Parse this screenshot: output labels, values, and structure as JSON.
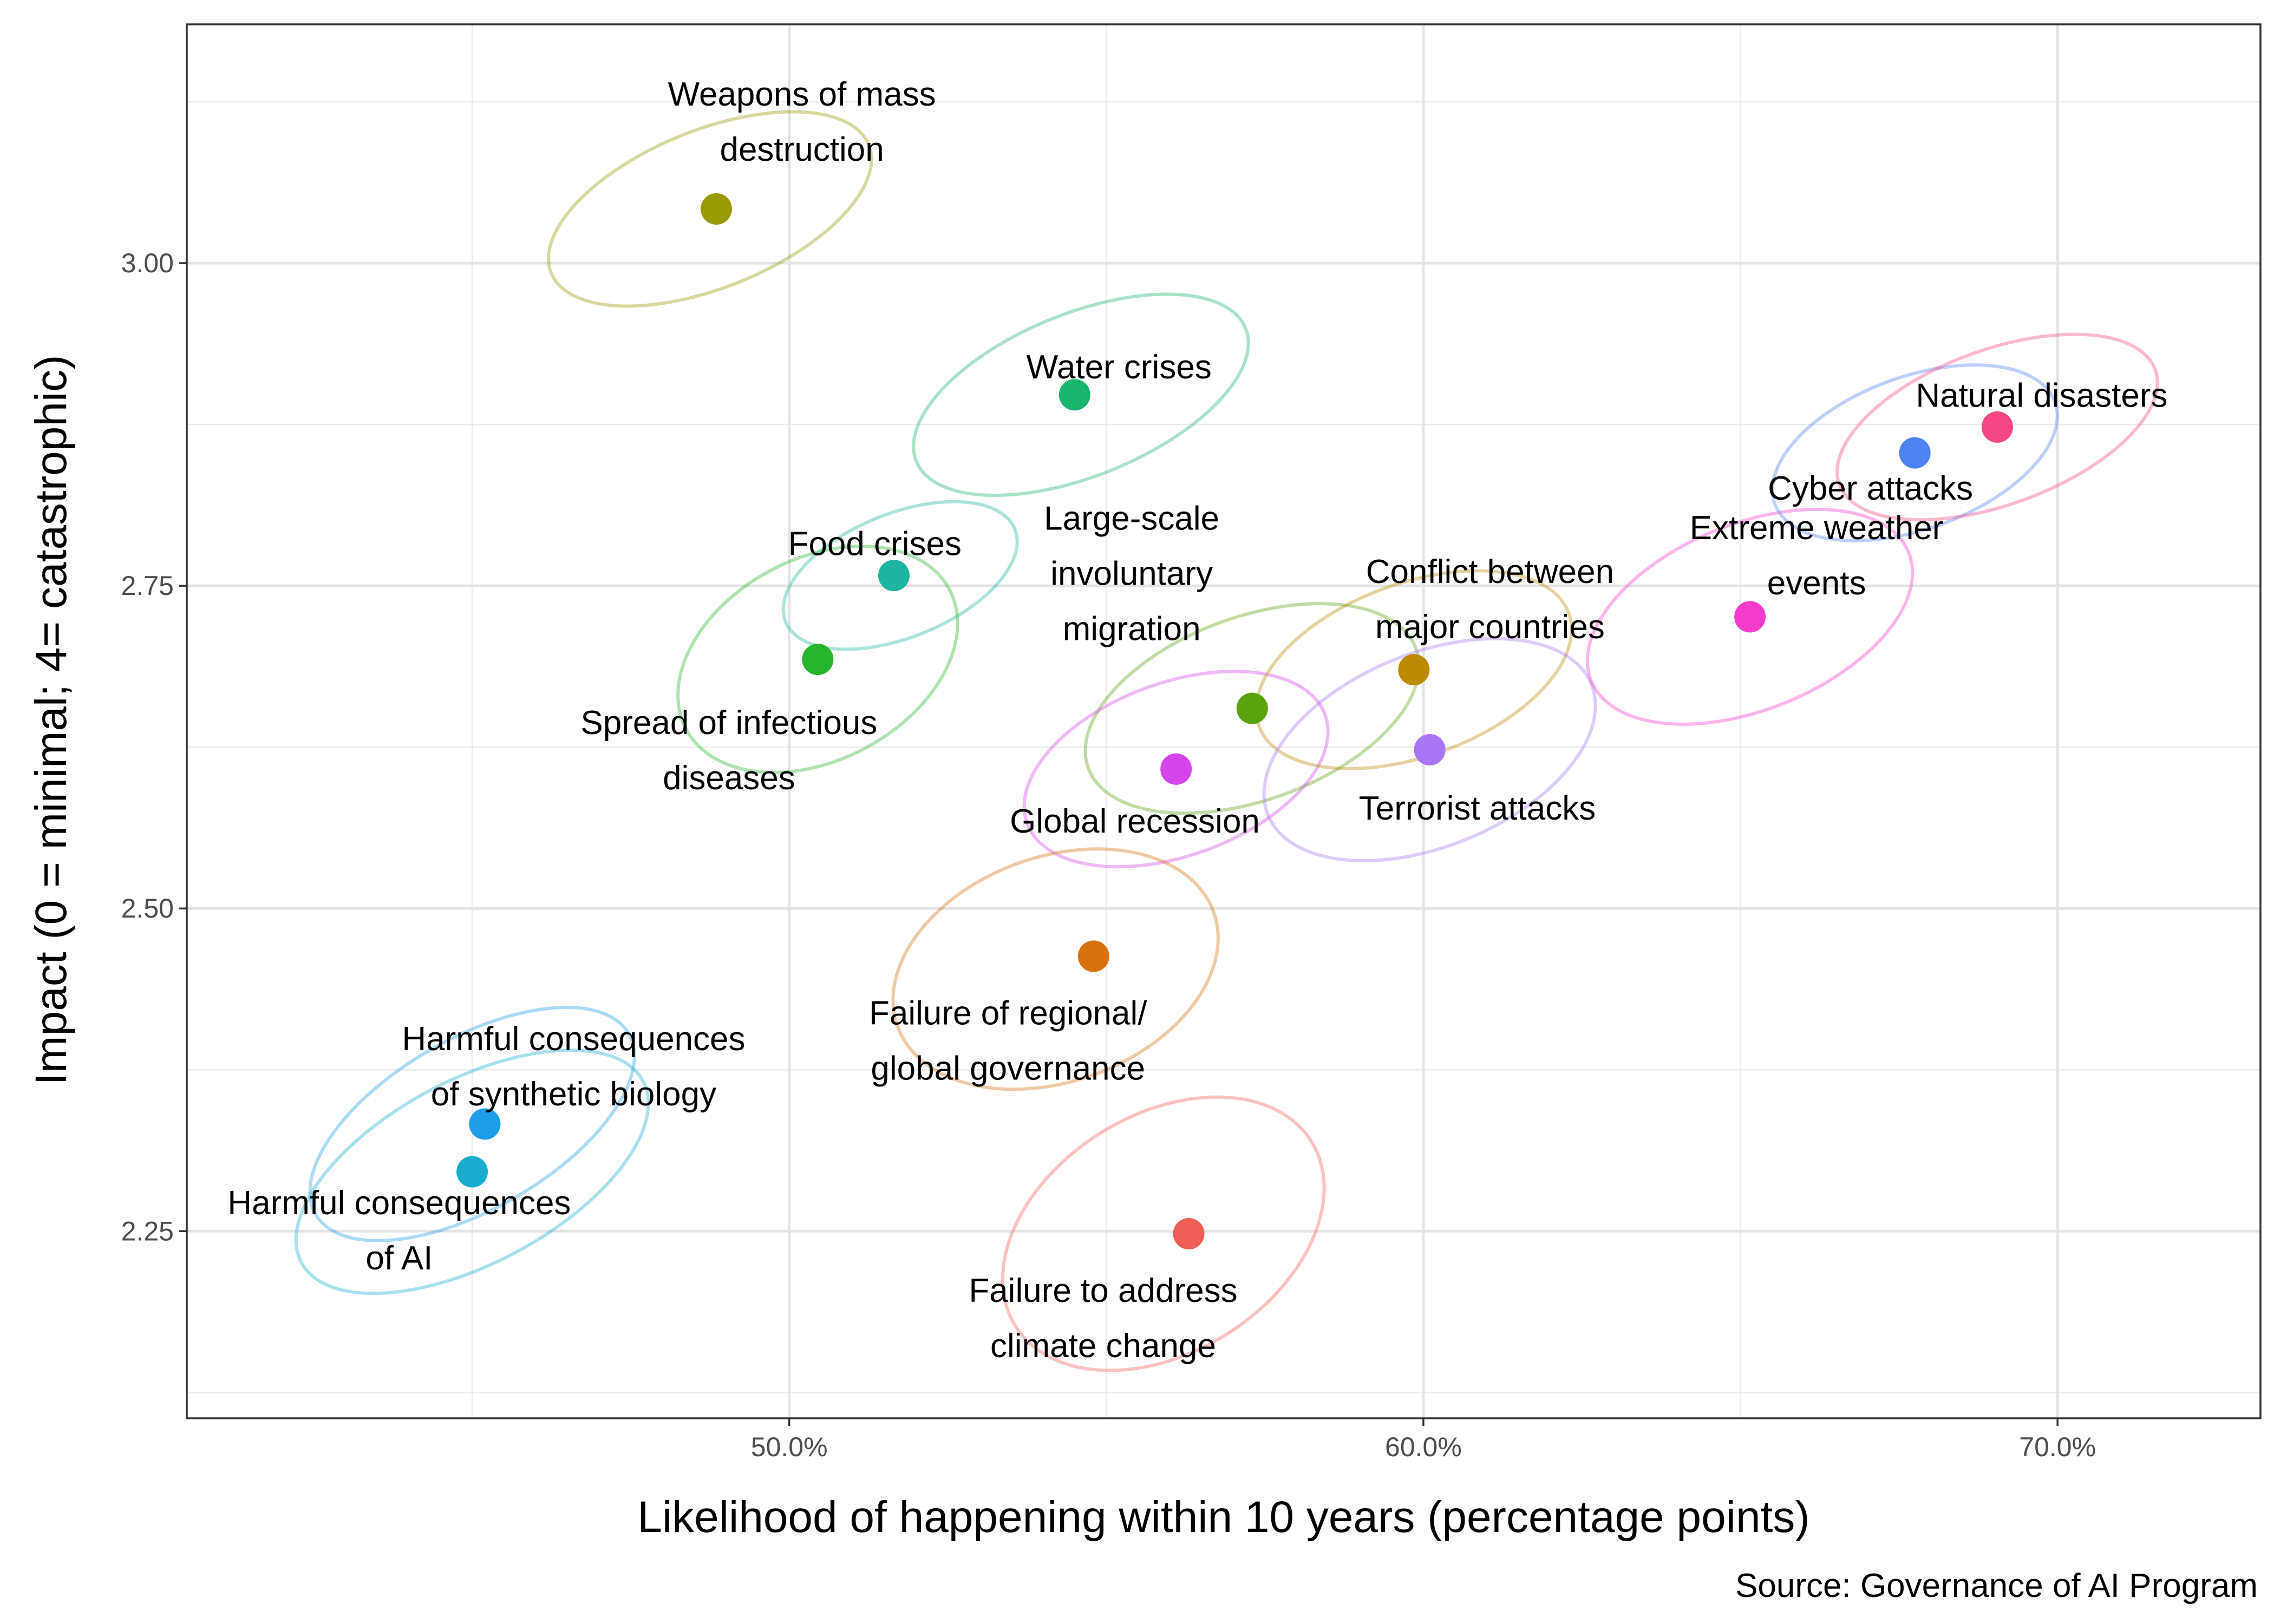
{
  "chart_data": {
    "type": "scatter",
    "xlabel": "Likelihood of happening within 10 years (percentage points)",
    "ylabel": "Impact (0 = minimal; 4= catastrophic)",
    "caption": "Source: Governance of AI Program",
    "xlim": [
      40.5,
      73.2
    ],
    "ylim": [
      2.105,
      3.185
    ],
    "x_ticks": [
      {
        "value": 50,
        "label": "50.0%"
      },
      {
        "value": 60,
        "label": "60.0%"
      },
      {
        "value": 70,
        "label": "70.0%"
      }
    ],
    "y_ticks": [
      {
        "value": 2.25,
        "label": "2.25"
      },
      {
        "value": 2.5,
        "label": "2.50"
      },
      {
        "value": 2.75,
        "label": "2.75"
      },
      {
        "value": 3.0,
        "label": "3.00"
      }
    ],
    "minor_x": [
      45,
      55,
      65
    ],
    "minor_y": [
      2.125,
      2.375,
      2.625,
      2.875,
      3.125
    ],
    "grid": true,
    "legend": "none",
    "points": [
      {
        "name": "Weapons of mass destruction",
        "label_lines": [
          "Weapons of mass",
          "destruction"
        ],
        "x": 48.85,
        "y": 3.042,
        "color": "#999900",
        "ell": {
          "rx": 2.7,
          "ry": 0.061,
          "rot": -22,
          "dx": -0.1,
          "dy": 0.0
        },
        "label_dx": 1.35,
        "label_dy": 0.068
      },
      {
        "name": "Water crises",
        "label_lines": [
          "Water crises"
        ],
        "x": 54.5,
        "y": 2.898,
        "color": "#1AB46E",
        "ell": {
          "rx": 2.8,
          "ry": 0.063,
          "rot": -22,
          "dx": 0.1,
          "dy": 0.0
        },
        "label_dx": 0.7,
        "label_dy": 0.022
      },
      {
        "name": "Food crises",
        "label_lines": [
          "Food crises"
        ],
        "x": 51.65,
        "y": 2.758,
        "color": "#1EB5A0",
        "ell": {
          "rx": 1.95,
          "ry": 0.048,
          "rot": -22,
          "dx": 0.1,
          "dy": 0.0
        },
        "label_dx": -0.3,
        "label_dy": 0.025
      },
      {
        "name": "Spread of infectious diseases",
        "label_lines": [
          "Spread of infectious",
          "diseases"
        ],
        "x": 50.45,
        "y": 2.693,
        "color": "#27B62B",
        "ell": {
          "rx": 2.35,
          "ry": 0.078,
          "rot": -28,
          "dx": 0.0,
          "dy": 0.0
        },
        "label_dx": -1.4,
        "label_dy": -0.07
      },
      {
        "name": "Large-scale involuntary migration",
        "label_lines": [
          "Large-scale",
          "involuntary",
          "migration"
        ],
        "x": 57.3,
        "y": 2.655,
        "color": "#5BA30E",
        "ell": {
          "rx": 2.75,
          "ry": 0.071,
          "rot": -20,
          "dx": 0.0,
          "dy": 0.0
        },
        "label_dx": -1.9,
        "label_dy": 0.105
      },
      {
        "name": "Global recession",
        "label_lines": [
          "Global recession"
        ],
        "x": 56.1,
        "y": 2.608,
        "color": "#D444E8",
        "ell": {
          "rx": 2.5,
          "ry": 0.067,
          "rot": -20,
          "dx": 0.0,
          "dy": 0.0
        },
        "label_dx": -0.65,
        "label_dy": -0.04
      },
      {
        "name": "Conflict between major countries",
        "label_lines": [
          "Conflict between",
          "major countries"
        ],
        "x": 59.85,
        "y": 2.685,
        "color": "#BA8A00",
        "ell": {
          "rx": 2.6,
          "ry": 0.067,
          "rot": -20,
          "dx": 0.0,
          "dy": 0.0
        },
        "label_dx": 1.2,
        "label_dy": 0.055
      },
      {
        "name": "Terrorist attacks",
        "label_lines": [
          "Terrorist attacks"
        ],
        "x": 60.1,
        "y": 2.623,
        "color": "#A974F5",
        "ell": {
          "rx": 2.75,
          "ry": 0.075,
          "rot": -22,
          "dx": 0.0,
          "dy": 0.0
        },
        "label_dx": 0.75,
        "label_dy": -0.045
      },
      {
        "name": "Failure of regional/global governance",
        "label_lines": [
          "Failure of regional/",
          "global governance"
        ],
        "x": 54.8,
        "y": 2.463,
        "color": "#D5720E",
        "ell": {
          "rx": 2.65,
          "ry": 0.087,
          "rot": -20,
          "dx": -0.6,
          "dy": -0.01
        },
        "label_dx": -1.35,
        "label_dy": -0.065
      },
      {
        "name": "Failure to address climate change",
        "label_lines": [
          "Failure to address",
          "climate change"
        ],
        "x": 56.3,
        "y": 2.248,
        "color": "#EF5E56",
        "ell": {
          "rx": 2.75,
          "ry": 0.092,
          "rot": -32,
          "dx": -0.4,
          "dy": 0.0
        },
        "label_dx": -1.35,
        "label_dy": -0.065
      },
      {
        "name": "Harmful consequences of synthetic biology",
        "label_lines": [
          "Harmful consequences",
          "of synthetic biology"
        ],
        "x": 45.2,
        "y": 2.333,
        "color": "#1E9EE8",
        "ell": {
          "rx": 2.85,
          "ry": 0.066,
          "rot": -30,
          "dx": -0.2,
          "dy": 0.0
        },
        "label_dx": 1.4,
        "label_dy": 0.045
      },
      {
        "name": "Harmful consequences of AI",
        "label_lines": [
          "Harmful consequences",
          "of AI"
        ],
        "x": 45.0,
        "y": 2.296,
        "color": "#18ADCF",
        "ell": {
          "rx": 3.05,
          "ry": 0.071,
          "rot": -28,
          "dx": 0.0,
          "dy": 0.0
        },
        "label_dx": -1.15,
        "label_dy": -0.045
      },
      {
        "name": "Extreme weather events",
        "label_lines": [
          "Extreme weather",
          "events"
        ],
        "x": 65.15,
        "y": 2.726,
        "color": "#F53CCC",
        "ell": {
          "rx": 2.7,
          "ry": 0.072,
          "rot": -22,
          "dx": 0.0,
          "dy": 0.0
        },
        "label_dx": 1.05,
        "label_dy": 0.048
      },
      {
        "name": "Cyber attacks",
        "label_lines": [
          "Cyber attacks"
        ],
        "x": 67.75,
        "y": 2.853,
        "color": "#4C82F2",
        "ell": {
          "rx": 2.35,
          "ry": 0.059,
          "rot": -20,
          "dx": 0.0,
          "dy": 0.0
        },
        "label_dx": -0.7,
        "label_dy": -0.027
      },
      {
        "name": "Natural disasters",
        "label_lines": [
          "Natural disasters"
        ],
        "x": 69.05,
        "y": 2.873,
        "color": "#F54785",
        "ell": {
          "rx": 2.65,
          "ry": 0.06,
          "rot": -20,
          "dx": 0.0,
          "dy": 0.0
        },
        "label_dx": 0.7,
        "label_dy": 0.025
      }
    ]
  }
}
